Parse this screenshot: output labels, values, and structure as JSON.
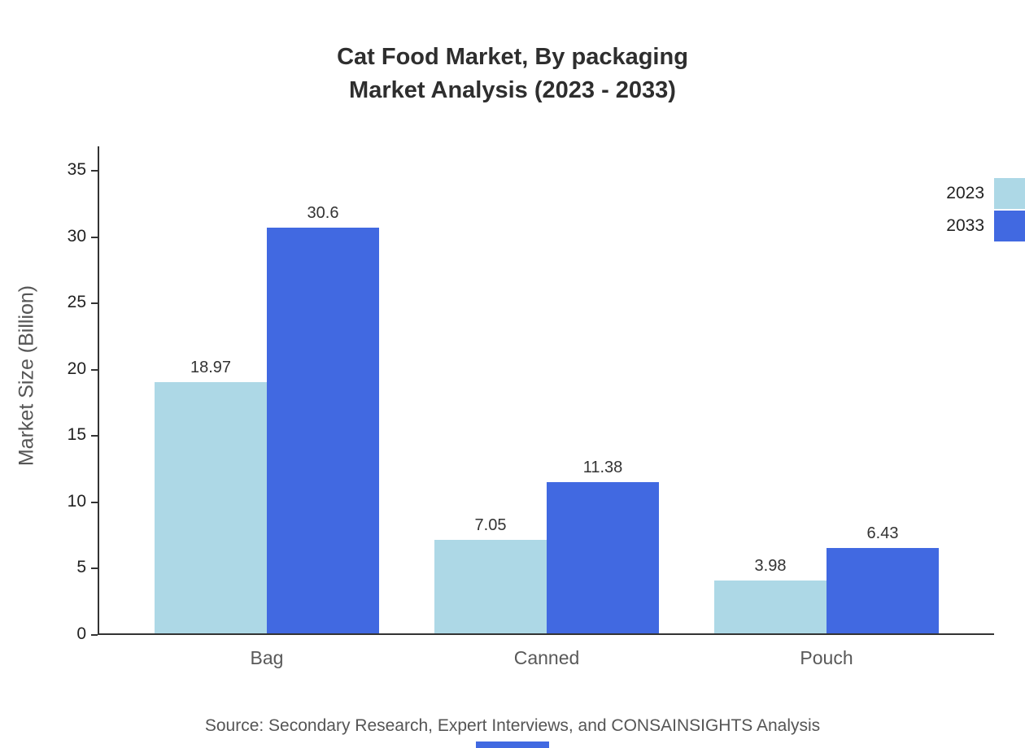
{
  "title": {
    "line1": "Cat Food Market, By packaging",
    "line2": "Market Analysis (2023 - 2033)"
  },
  "chart_data": {
    "type": "bar",
    "title": "Cat Food Market, By packaging Market Analysis (2023 - 2033)",
    "categories": [
      "Bag",
      "Canned",
      "Pouch"
    ],
    "series": [
      {
        "name": "2023",
        "color": "#add8e6",
        "values": [
          18.97,
          7.05,
          3.98
        ]
      },
      {
        "name": "2033",
        "color": "#4169e1",
        "values": [
          30.6,
          11.38,
          6.43
        ]
      }
    ],
    "xlabel": "",
    "ylabel": "Market Size (Billion)",
    "ylim": [
      0,
      35
    ],
    "yticks": [
      0,
      5,
      10,
      15,
      20,
      25,
      30,
      35
    ],
    "legend_position": "top-right",
    "grid": false
  },
  "footer": {
    "source": "Source: Secondary Research, Expert Interviews, and CONSAINSIGHTS Analysis"
  },
  "accent": {
    "bottom_bar_color": "#4169e1"
  }
}
